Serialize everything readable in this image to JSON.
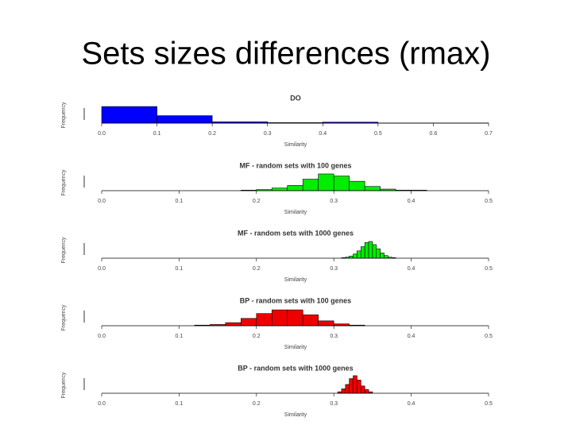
{
  "title": "Sets sizes differences (rmax)",
  "chart_data": [
    {
      "type": "histogram",
      "title": "DO",
      "xlabel": "Similarity",
      "ylabel": "Frequency",
      "color": "#0000ff",
      "bins": [
        0,
        0.1,
        0.2,
        0.3,
        0.4,
        0.5,
        0.6,
        0.7
      ],
      "counts": [
        100,
        45,
        8,
        3,
        6,
        1,
        1
      ],
      "xlim": [
        0,
        0.7
      ],
      "ylim": [
        0,
        110
      ],
      "xticks": [
        {
          "value": 0,
          "label": "0.0"
        },
        0.1,
        0.2,
        0.3,
        0.4,
        0.5,
        0.6,
        0.7
      ]
    },
    {
      "type": "histogram",
      "title": "MF - random sets with 100 genes",
      "xlabel": "Similarity",
      "ylabel": "Frequency",
      "color": "#00ee00",
      "bins": [
        0.18,
        0.2,
        0.22,
        0.24,
        0.26,
        0.28,
        0.3,
        0.32,
        0.34,
        0.36,
        0.38,
        0.4,
        0.42
      ],
      "counts": [
        1,
        2,
        5,
        10,
        22,
        32,
        28,
        18,
        8,
        3,
        1,
        1
      ],
      "xlim": [
        0,
        0.5
      ],
      "ylim": [
        0,
        35
      ],
      "xticks": [
        {
          "value": 0,
          "label": "0.0"
        },
        0.1,
        0.2,
        0.3,
        0.4,
        0.5
      ]
    },
    {
      "type": "histogram",
      "title": "MF - random sets with 1000 genes",
      "xlabel": "Similarity",
      "ylabel": "Frequency",
      "color": "#00ee00",
      "bins": [
        0.31,
        0.315,
        0.32,
        0.325,
        0.33,
        0.335,
        0.34,
        0.345,
        0.35,
        0.355,
        0.36,
        0.365,
        0.37,
        0.375,
        0.38
      ],
      "counts": [
        1,
        2,
        4,
        8,
        14,
        22,
        30,
        32,
        26,
        18,
        10,
        5,
        2,
        1
      ],
      "xlim": [
        0,
        0.5
      ],
      "ylim": [
        0,
        35
      ],
      "xticks": [
        {
          "value": 0,
          "label": "0.0"
        },
        0.1,
        0.2,
        0.3,
        0.4,
        0.5
      ]
    },
    {
      "type": "histogram",
      "title": "BP - random sets with 100 genes",
      "xlabel": "Similarity",
      "ylabel": "Frequency",
      "color": "#ee0000",
      "bins": [
        0.12,
        0.14,
        0.16,
        0.18,
        0.2,
        0.22,
        0.24,
        0.26,
        0.28,
        0.3,
        0.32,
        0.34
      ],
      "counts": [
        1,
        2,
        5,
        12,
        20,
        26,
        26,
        18,
        8,
        3,
        1
      ],
      "xlim": [
        0,
        0.5
      ],
      "ylim": [
        0,
        30
      ],
      "xticks": [
        {
          "value": 0,
          "label": "0.0"
        },
        0.1,
        0.2,
        0.3,
        0.4,
        0.5
      ]
    },
    {
      "type": "histogram",
      "title": "BP - random sets with 1000 genes",
      "xlabel": "Similarity",
      "ylabel": "Frequency",
      "color": "#ee0000",
      "bins": [
        0.305,
        0.31,
        0.315,
        0.32,
        0.325,
        0.33,
        0.335,
        0.34,
        0.345,
        0.35
      ],
      "counts": [
        2,
        6,
        12,
        20,
        24,
        18,
        10,
        5,
        2
      ],
      "xlim": [
        0,
        0.5
      ],
      "ylim": [
        0,
        25
      ],
      "xticks": [
        {
          "value": 0,
          "label": "0.0"
        },
        0.1,
        0.2,
        0.3,
        0.4,
        0.5
      ]
    }
  ]
}
